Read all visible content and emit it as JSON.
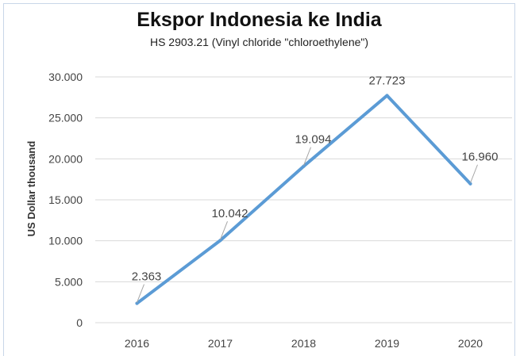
{
  "chart_data": {
    "type": "line",
    "title": "Ekspor Indonesia ke India",
    "subtitle": "HS 2903.21 (Vinyl chloride \"chloroethylene\")",
    "ylabel": "US Dollar thousand",
    "xlabel": "",
    "categories": [
      "2016",
      "2017",
      "2018",
      "2019",
      "2020"
    ],
    "series": [
      {
        "values": [
          2363,
          10042,
          19094,
          27723,
          16960
        ],
        "labels": [
          "2.363",
          "10.042",
          "19.094",
          "27.723",
          "16.960"
        ]
      }
    ],
    "yticks": [
      0,
      5000,
      10000,
      15000,
      20000,
      25000,
      30000
    ],
    "ytick_labels": [
      "0",
      "5.000",
      "10.000",
      "15.000",
      "20.000",
      "25.000",
      "30.000"
    ],
    "ylim": [
      0,
      30000
    ],
    "grid": true,
    "legend": "none",
    "line_color": "#5b9bd5",
    "grid_color": "#d9d9d9"
  }
}
